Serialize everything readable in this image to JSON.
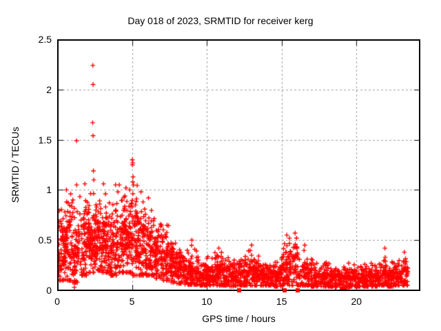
{
  "chart_data": {
    "type": "scatter",
    "title": "Day 018 of 2023, SRMTID for receiver kerg",
    "xlabel": "GPS time / hours",
    "ylabel": "SRMTID / TECUs",
    "xlim": [
      0,
      24.27
    ],
    "ylim": [
      0,
      2.5
    ],
    "xtick_values": [
      0,
      5,
      10,
      15,
      20
    ],
    "xtick_labels": [
      "0",
      "5",
      "10",
      "15",
      "20"
    ],
    "ytick_values": [
      0,
      0.5,
      1,
      1.5,
      2,
      2.5
    ],
    "ytick_labels": [
      "0",
      "0.5",
      "1",
      "1.5",
      "2",
      "2.5"
    ],
    "grid": true,
    "legend": "none",
    "marker": {
      "shape": "plus",
      "color": "#ff0000"
    },
    "grid_color": "#9e9e9e",
    "axis_color": "#000000",
    "notable_points": [
      [
        0.62,
        1.0
      ],
      [
        0.9,
        0.96
      ],
      [
        1.05,
        0.9
      ],
      [
        1.15,
        0.03
      ],
      [
        1.29,
        1.49
      ],
      [
        1.3,
        1.05
      ],
      [
        1.85,
        1.06
      ],
      [
        2.38,
        2.24
      ],
      [
        2.4,
        2.05
      ],
      [
        2.37,
        1.67
      ],
      [
        2.4,
        1.54
      ],
      [
        2.42,
        1.19
      ],
      [
        2.45,
        1.1
      ],
      [
        3.1,
        1.06
      ],
      [
        3.9,
        1.05
      ],
      [
        4.06,
        0.98
      ],
      [
        4.15,
        1.05
      ],
      [
        4.6,
        1.02
      ],
      [
        4.85,
        1.0
      ],
      [
        5.02,
        1.3
      ],
      [
        5.05,
        1.27
      ],
      [
        5.03,
        1.25
      ],
      [
        5.07,
        1.13
      ],
      [
        5.05,
        1.08
      ],
      [
        5.1,
        1.05
      ],
      [
        5.6,
        0.98
      ],
      [
        6.1,
        0.92
      ],
      [
        9.0,
        0.5
      ],
      [
        10.8,
        0.42
      ],
      [
        13.0,
        0.45
      ],
      [
        15.35,
        0.55
      ],
      [
        15.9,
        0.57
      ],
      [
        16.0,
        0.52
      ],
      [
        16.55,
        0.45
      ],
      [
        19.05,
        0.01
      ],
      [
        19.15,
        0.01
      ],
      [
        21.9,
        0.42
      ],
      [
        23.2,
        0.38
      ]
    ],
    "zero_value_squares_x": [
      12.17,
      15.22,
      16.05
    ],
    "density_bins_format": [
      "x_start",
      "x_end",
      "count",
      "y_min",
      "y_max",
      "y_mean",
      "y_spread"
    ],
    "density_bins": [
      [
        0.02,
        0.5,
        75,
        0.1,
        0.95,
        0.42,
        0.2
      ],
      [
        0.5,
        1.0,
        75,
        0.1,
        1.0,
        0.45,
        0.21
      ],
      [
        1.0,
        1.5,
        65,
        0.08,
        0.92,
        0.38,
        0.2
      ],
      [
        1.5,
        2.0,
        70,
        0.15,
        1.05,
        0.45,
        0.21
      ],
      [
        2.0,
        2.5,
        75,
        0.18,
        1.1,
        0.5,
        0.22
      ],
      [
        2.5,
        3.0,
        80,
        0.2,
        1.05,
        0.48,
        0.21
      ],
      [
        3.0,
        3.5,
        80,
        0.18,
        1.0,
        0.45,
        0.2
      ],
      [
        3.5,
        4.0,
        75,
        0.15,
        0.95,
        0.42,
        0.19
      ],
      [
        4.0,
        4.5,
        75,
        0.18,
        1.0,
        0.45,
        0.2
      ],
      [
        4.5,
        5.0,
        75,
        0.18,
        1.05,
        0.5,
        0.21
      ],
      [
        5.0,
        5.5,
        75,
        0.15,
        1.2,
        0.5,
        0.23
      ],
      [
        5.5,
        6.0,
        70,
        0.15,
        1.0,
        0.45,
        0.21
      ],
      [
        6.0,
        6.5,
        70,
        0.15,
        0.9,
        0.4,
        0.18
      ],
      [
        6.5,
        7.0,
        65,
        0.12,
        0.8,
        0.35,
        0.16
      ],
      [
        7.0,
        7.5,
        65,
        0.1,
        0.65,
        0.3,
        0.14
      ],
      [
        7.5,
        8.0,
        65,
        0.08,
        0.55,
        0.26,
        0.12
      ],
      [
        8.0,
        8.5,
        60,
        0.07,
        0.48,
        0.22,
        0.1
      ],
      [
        8.5,
        9.0,
        60,
        0.06,
        0.5,
        0.2,
        0.1
      ],
      [
        9.0,
        9.5,
        55,
        0.06,
        0.45,
        0.18,
        0.09
      ],
      [
        9.5,
        10.0,
        55,
        0.05,
        0.35,
        0.15,
        0.08
      ],
      [
        10.0,
        10.5,
        55,
        0.05,
        0.35,
        0.15,
        0.08
      ],
      [
        10.5,
        11.0,
        55,
        0.05,
        0.42,
        0.16,
        0.09
      ],
      [
        11.0,
        11.5,
        55,
        0.05,
        0.35,
        0.15,
        0.08
      ],
      [
        11.5,
        12.0,
        52,
        0.04,
        0.3,
        0.14,
        0.07
      ],
      [
        12.0,
        12.5,
        52,
        0.05,
        0.35,
        0.15,
        0.08
      ],
      [
        12.5,
        13.0,
        55,
        0.05,
        0.45,
        0.17,
        0.09
      ],
      [
        13.0,
        13.5,
        55,
        0.05,
        0.4,
        0.16,
        0.08
      ],
      [
        13.5,
        14.0,
        52,
        0.05,
        0.32,
        0.14,
        0.07
      ],
      [
        14.0,
        14.5,
        52,
        0.05,
        0.3,
        0.14,
        0.07
      ],
      [
        14.5,
        15.0,
        52,
        0.04,
        0.3,
        0.13,
        0.07
      ],
      [
        15.0,
        15.5,
        60,
        0.05,
        0.5,
        0.2,
        0.11
      ],
      [
        15.5,
        16.2,
        65,
        0.05,
        0.57,
        0.22,
        0.12
      ],
      [
        16.2,
        16.8,
        55,
        0.05,
        0.45,
        0.16,
        0.09
      ],
      [
        16.8,
        17.5,
        60,
        0.04,
        0.38,
        0.14,
        0.08
      ],
      [
        17.5,
        18.0,
        52,
        0.04,
        0.35,
        0.13,
        0.07
      ],
      [
        18.0,
        18.5,
        52,
        0.04,
        0.3,
        0.12,
        0.07
      ],
      [
        18.5,
        19.0,
        50,
        0.03,
        0.28,
        0.11,
        0.06
      ],
      [
        19.0,
        19.5,
        50,
        0.02,
        0.3,
        0.11,
        0.07
      ],
      [
        19.5,
        20.0,
        50,
        0.04,
        0.28,
        0.12,
        0.06
      ],
      [
        20.0,
        20.5,
        50,
        0.04,
        0.28,
        0.11,
        0.06
      ],
      [
        20.5,
        21.0,
        50,
        0.04,
        0.3,
        0.12,
        0.07
      ],
      [
        21.0,
        21.5,
        50,
        0.04,
        0.3,
        0.12,
        0.07
      ],
      [
        21.5,
        22.0,
        52,
        0.05,
        0.42,
        0.15,
        0.08
      ],
      [
        22.0,
        22.5,
        50,
        0.04,
        0.3,
        0.12,
        0.07
      ],
      [
        22.5,
        23.0,
        50,
        0.05,
        0.35,
        0.13,
        0.07
      ],
      [
        23.0,
        23.45,
        45,
        0.05,
        0.38,
        0.16,
        0.08
      ]
    ]
  }
}
